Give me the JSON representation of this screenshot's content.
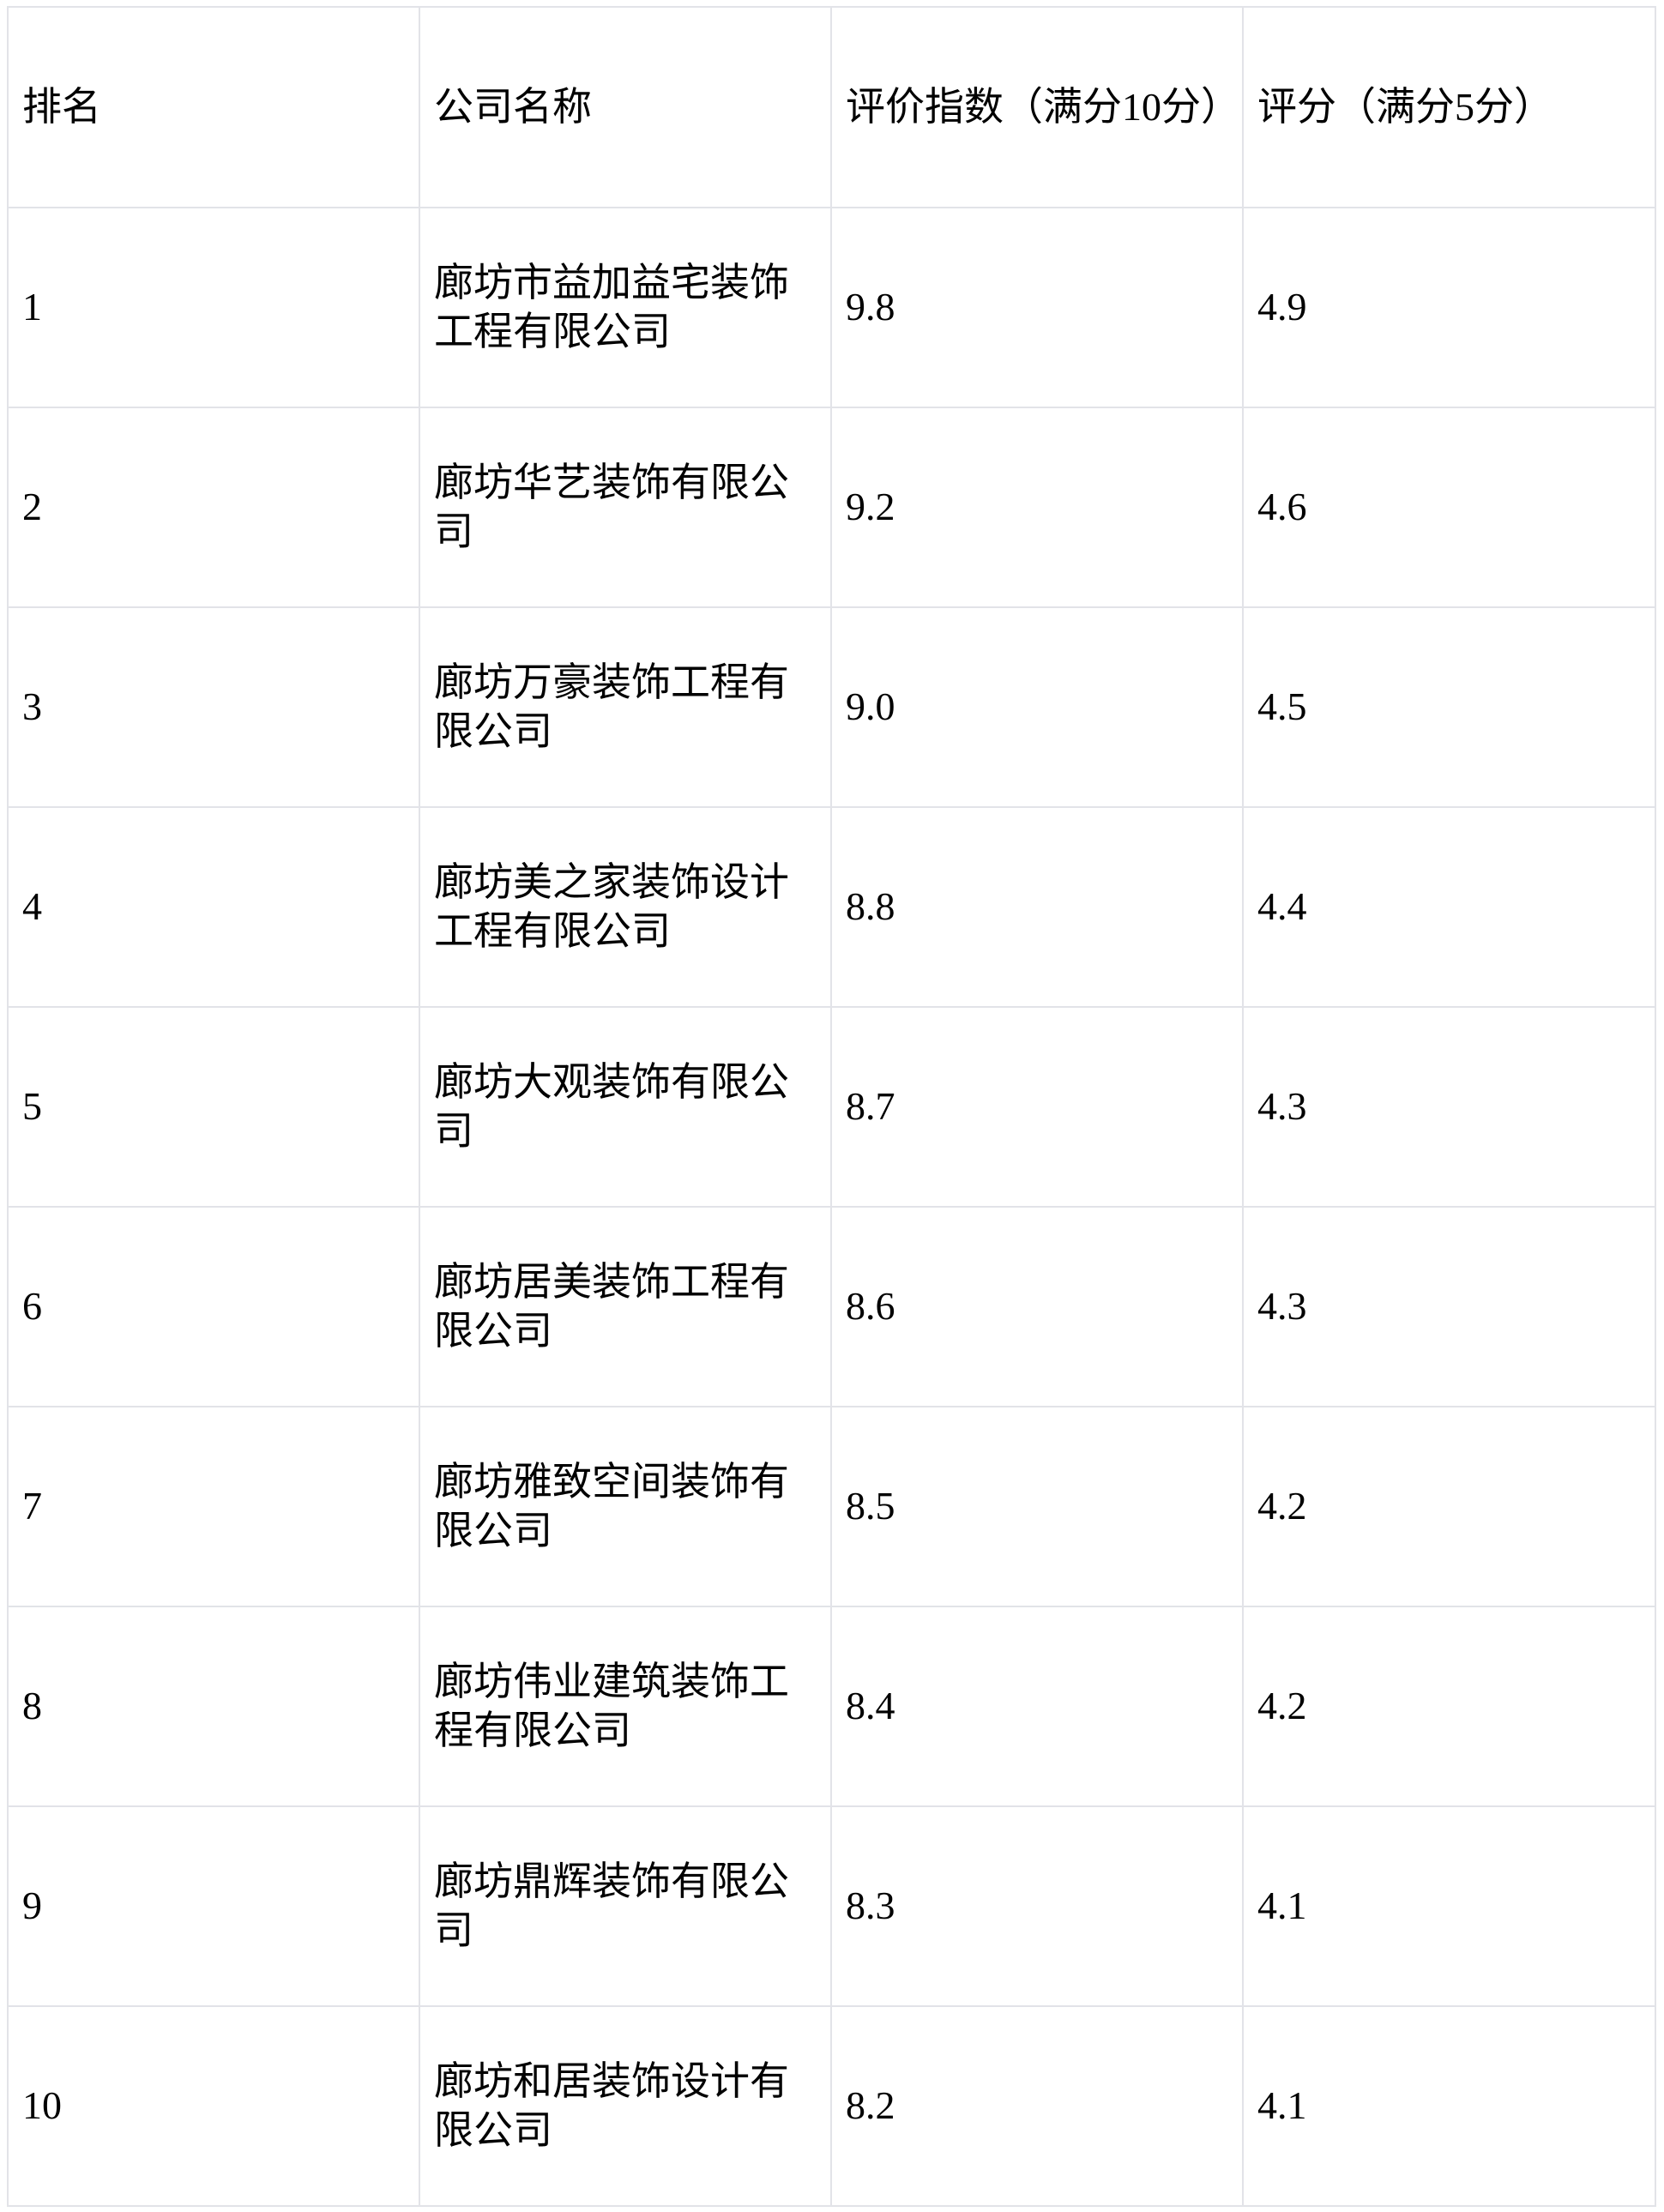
{
  "table": {
    "columns": [
      {
        "label": "排名"
      },
      {
        "label": "公司名称"
      },
      {
        "label": "评价指数（满分10分）"
      },
      {
        "label": "评分（满分5分）"
      }
    ],
    "rows": [
      {
        "rank": "1",
        "company": "廊坊市益加益宅装饰工程有限公司",
        "index": "9.8",
        "score": "4.9"
      },
      {
        "rank": "2",
        "company": "廊坊华艺装饰有限公司",
        "index": "9.2",
        "score": "4.6"
      },
      {
        "rank": "3",
        "company": "廊坊万豪装饰工程有限公司",
        "index": "9.0",
        "score": "4.5"
      },
      {
        "rank": "4",
        "company": "廊坊美之家装饰设计工程有限公司",
        "index": "8.8",
        "score": "4.4"
      },
      {
        "rank": "5",
        "company": "廊坊大观装饰有限公司",
        "index": "8.7",
        "score": "4.3"
      },
      {
        "rank": "6",
        "company": "廊坊居美装饰工程有限公司",
        "index": "8.6",
        "score": "4.3"
      },
      {
        "rank": "7",
        "company": "廊坊雅致空间装饰有限公司",
        "index": "8.5",
        "score": "4.2"
      },
      {
        "rank": "8",
        "company": "廊坊伟业建筑装饰工程有限公司",
        "index": "8.4",
        "score": "4.2"
      },
      {
        "rank": "9",
        "company": "廊坊鼎辉装饰有限公司",
        "index": "8.3",
        "score": "4.1"
      },
      {
        "rank": "10",
        "company": "廊坊和居装饰设计有限公司",
        "index": "8.2",
        "score": "4.1"
      }
    ],
    "colors": {
      "border": "#e2e3e8",
      "text": "#000000",
      "background": "#ffffff"
    }
  },
  "chart_data": {
    "type": "table",
    "title": "",
    "columns": [
      "排名",
      "公司名称",
      "评价指数（满分10分）",
      "评分（满分5分）"
    ],
    "rows": [
      [
        1,
        "廊坊市益加益宅装饰工程有限公司",
        9.8,
        4.9
      ],
      [
        2,
        "廊坊华艺装饰有限公司",
        9.2,
        4.6
      ],
      [
        3,
        "廊坊万豪装饰工程有限公司",
        9.0,
        4.5
      ],
      [
        4,
        "廊坊美之家装饰设计工程有限公司",
        8.8,
        4.4
      ],
      [
        5,
        "廊坊大观装饰有限公司",
        8.7,
        4.3
      ],
      [
        6,
        "廊坊居美装饰工程有限公司",
        8.6,
        4.3
      ],
      [
        7,
        "廊坊雅致空间装饰有限公司",
        8.5,
        4.2
      ],
      [
        8,
        "廊坊伟业建筑装饰工程有限公司",
        8.4,
        4.2
      ],
      [
        9,
        "廊坊鼎辉装饰有限公司",
        8.3,
        4.1
      ],
      [
        10,
        "廊坊和居装饰设计有限公司",
        8.2,
        4.1
      ]
    ],
    "index_max": 10,
    "score_max": 5
  }
}
